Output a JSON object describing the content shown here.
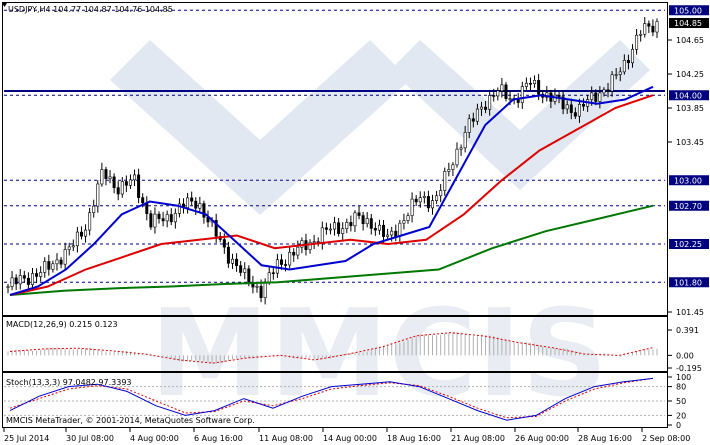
{
  "header": {
    "main": "USDJPY,H4  104.77 104.87 104.76 104.85",
    "macd": "MACD(12,26,9) 0.215 0.123",
    "stoch": "Stoch(13,3,3) 97.0482 97.3393",
    "copyright": "MMCIS MetaTrader, © 2001-2014, MetaQuotes Software Corp."
  },
  "watermark": "MMCIS",
  "colors": {
    "candle": "#000000",
    "ma_fast": "#0000cc",
    "ma_mid": "#dd0000",
    "ma_slow": "#007700",
    "level": "#000080",
    "current_price_bg": "#000000",
    "macd_signal": "#dd0000",
    "macd_hist": "#b0b0b0",
    "stoch_main": "#0000cc",
    "stoch_signal": "#dd0000"
  },
  "price_axis": {
    "ticks": [
      "104.65",
      "104.25",
      "103.85",
      "103.45",
      "101.45"
    ],
    "boxed_levels": [
      "105.00",
      "104.00",
      "103.00",
      "102.70",
      "102.25",
      "101.80"
    ],
    "current": "104.85"
  },
  "macd_axis": [
    "0.391",
    "0.00",
    "-0.195"
  ],
  "stoch_axis": [
    "100",
    "80",
    "50",
    "20",
    "0"
  ],
  "time_axis": [
    "25 Jul 2014",
    "30 Jul 08:00",
    "4 Aug 00:00",
    "6 Aug 16:00",
    "11 Aug 08:00",
    "14 Aug 00:00",
    "18 Aug 16:00",
    "21 Aug 08:00",
    "26 Aug 00:00",
    "28 Aug 16:00",
    "2 Sep 08:00"
  ],
  "chart_data": {
    "type": "candlestick",
    "price_range": [
      101.45,
      105.05
    ],
    "levels": {
      "solid": [
        104.05
      ],
      "dashed": [
        105.0,
        104.0,
        103.0,
        102.7,
        102.25,
        101.8
      ]
    },
    "close_path": [
      101.75,
      101.85,
      101.9,
      102.05,
      102.2,
      102.5,
      103.1,
      102.9,
      103.0,
      102.5,
      102.55,
      102.7,
      102.75,
      102.4,
      102.1,
      101.85,
      101.7,
      102.0,
      102.15,
      102.25,
      102.4,
      102.45,
      102.55,
      102.5,
      102.3,
      102.55,
      102.8,
      102.75,
      103.2,
      103.6,
      103.9,
      104.05,
      103.95,
      104.15,
      104.0,
      103.9,
      103.8,
      104.0,
      104.1,
      104.4,
      104.75,
      104.85
    ],
    "ma_fast": [
      101.65,
      101.75,
      101.95,
      102.25,
      102.6,
      102.75,
      102.7,
      102.6,
      102.3,
      102.0,
      101.95,
      102.0,
      102.05,
      102.25,
      102.35,
      102.45,
      103.05,
      103.65,
      103.95,
      104.0,
      103.95,
      103.9,
      103.95,
      104.1
    ],
    "ma_mid": [
      101.65,
      101.75,
      101.95,
      102.1,
      102.25,
      102.3,
      102.35,
      102.2,
      102.25,
      102.3,
      102.25,
      102.3,
      102.6,
      103.0,
      103.35,
      103.6,
      103.85,
      104.0
    ],
    "ma_slow": [
      101.65,
      101.7,
      101.73,
      101.75,
      101.78,
      101.8,
      101.85,
      101.9,
      101.95,
      102.2,
      102.4,
      102.55,
      102.7
    ],
    "macd_signal": [
      0.06,
      0.1,
      0.11,
      0.07,
      0.02,
      -0.07,
      -0.12,
      -0.04,
      0.0,
      -0.07,
      0.02,
      0.13,
      0.3,
      0.35,
      0.3,
      0.2,
      0.12,
      0.02,
      0.0,
      0.12
    ],
    "stoch_main": [
      30,
      60,
      80,
      85,
      70,
      40,
      20,
      30,
      55,
      35,
      60,
      80,
      85,
      90,
      80,
      55,
      30,
      10,
      20,
      55,
      80,
      90,
      97
    ],
    "stoch_signal": [
      35,
      55,
      75,
      82,
      75,
      50,
      25,
      28,
      50,
      40,
      55,
      75,
      82,
      88,
      82,
      60,
      35,
      15,
      18,
      50,
      75,
      88,
      97
    ]
  }
}
